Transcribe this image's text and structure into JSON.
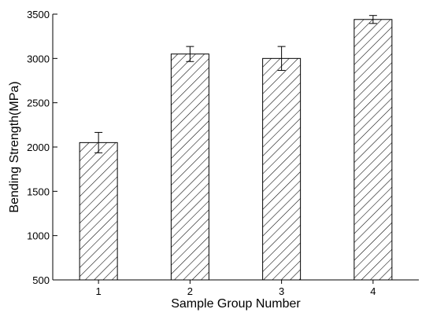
{
  "chart_data": {
    "type": "bar",
    "categories": [
      "1",
      "2",
      "3",
      "4"
    ],
    "values": [
      2050,
      3050,
      3000,
      3440
    ],
    "errors": [
      115,
      85,
      135,
      45
    ],
    "xlabel": "Sample Group Number",
    "ylabel": "Bending Strength(MPa)",
    "ylim": [
      500,
      3500
    ],
    "yticks": [
      500,
      1000,
      1500,
      2000,
      2500,
      3000,
      3500
    ],
    "grid": false,
    "bar_pattern": "diagonal-hatch",
    "colors": {
      "bar_stroke": "#000000",
      "hatch": "#000000",
      "background": "#ffffff"
    }
  }
}
